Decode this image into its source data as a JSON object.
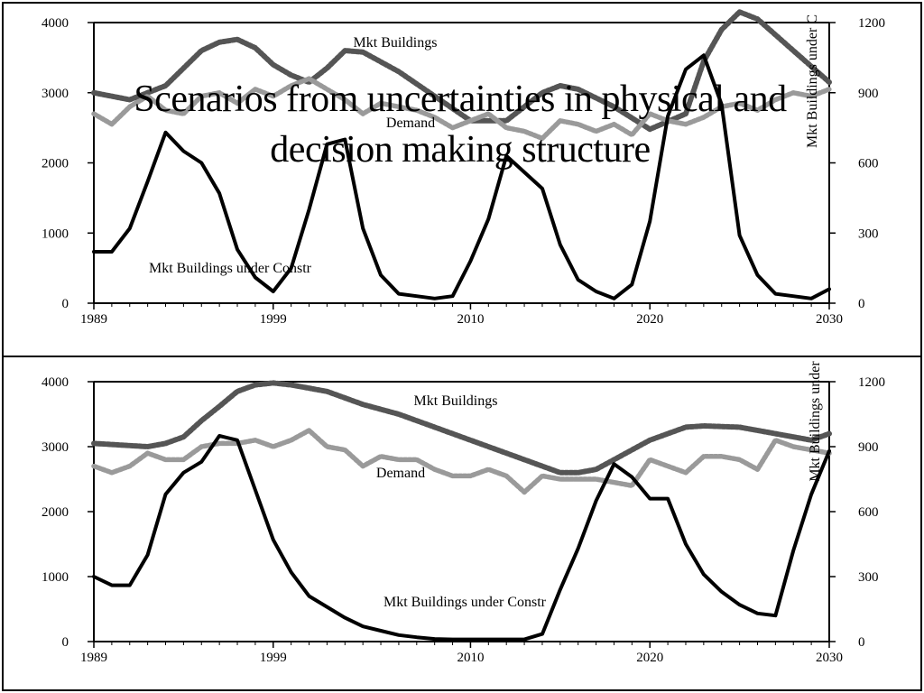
{
  "title": "Scenarios from uncertainties in physical and decision making structure",
  "title_lines": [
    "Scenarios from uncertainties in physical and",
    "decision making structure"
  ],
  "colors": {
    "buildings": "#555555",
    "demand": "#9a9a9a",
    "construction": "#000000"
  },
  "chart_data": [
    {
      "type": "line",
      "x_ticks": [
        "1989",
        "1999",
        "2010",
        "2020",
        "2030"
      ],
      "xlim": [
        1989,
        2030
      ],
      "ylim_left": [
        0,
        4000
      ],
      "y_ticks_left": [
        "0",
        "1000",
        "2000",
        "3000",
        "4000"
      ],
      "ylim_right": [
        0,
        1200
      ],
      "y_ticks_right": [
        "0",
        "300",
        "600",
        "900",
        "1200"
      ],
      "ylabel_right": "Mkt Buildings under C",
      "series": [
        {
          "name": "Mkt Buildings",
          "axis": "left",
          "x": [
            1989,
            1991,
            1993,
            1995,
            1996,
            1997,
            1998,
            1999,
            2000,
            2001,
            2002,
            2003,
            2004,
            2006,
            2008,
            2010,
            2012,
            2014,
            2015,
            2016,
            2018,
            2020,
            2022,
            2023,
            2024,
            2025,
            2026,
            2028,
            2030
          ],
          "y": [
            3000,
            2900,
            3100,
            3600,
            3720,
            3760,
            3640,
            3400,
            3250,
            3150,
            3350,
            3600,
            3580,
            3300,
            2950,
            2600,
            2600,
            3000,
            3100,
            3050,
            2800,
            2480,
            2700,
            3450,
            3900,
            4150,
            4050,
            3600,
            3150
          ]
        },
        {
          "name": "Demand",
          "axis": "left",
          "x": [
            1989,
            1990,
            1991,
            1992,
            1993,
            1994,
            1995,
            1996,
            1997,
            1998,
            1999,
            2000,
            2001,
            2002,
            2003,
            2004,
            2005,
            2006,
            2007,
            2008,
            2009,
            2010,
            2011,
            2012,
            2013,
            2014,
            2015,
            2016,
            2017,
            2018,
            2019,
            2020,
            2021,
            2022,
            2023,
            2024,
            2025,
            2026,
            2027,
            2028,
            2029,
            2030
          ],
          "y": [
            2700,
            2550,
            2800,
            2950,
            2750,
            2700,
            2950,
            3000,
            2850,
            3050,
            2950,
            3100,
            3200,
            3050,
            2900,
            2700,
            2850,
            2800,
            2750,
            2650,
            2500,
            2600,
            2700,
            2500,
            2450,
            2350,
            2600,
            2550,
            2450,
            2550,
            2400,
            2700,
            2600,
            2550,
            2650,
            2800,
            2850,
            2750,
            2900,
            3000,
            2950,
            3050
          ]
        },
        {
          "name": "Mkt Buildings under Constr",
          "axis": "right",
          "x": [
            1989,
            1990,
            1991,
            1992,
            1993,
            1994,
            1995,
            1996,
            1997,
            1998,
            1999,
            2000,
            2001,
            2002,
            2003,
            2004,
            2005,
            2006,
            2007,
            2008,
            2009,
            2010,
            2011,
            2012,
            2013,
            2014,
            2015,
            2016,
            2017,
            2018,
            2019,
            2020,
            2021,
            2022,
            2023,
            2024,
            2025,
            2026,
            2027,
            2028,
            2029,
            2030
          ],
          "y": [
            220,
            220,
            320,
            520,
            730,
            650,
            600,
            470,
            230,
            110,
            50,
            150,
            400,
            680,
            700,
            320,
            120,
            40,
            30,
            20,
            30,
            180,
            360,
            630,
            560,
            490,
            250,
            100,
            50,
            20,
            80,
            350,
            800,
            1000,
            1060,
            850,
            290,
            120,
            40,
            30,
            20,
            60
          ]
        }
      ]
    },
    {
      "type": "line",
      "x_ticks": [
        "1989",
        "1999",
        "2010",
        "2020",
        "2030"
      ],
      "xlim": [
        1989,
        2030
      ],
      "ylim_left": [
        0,
        4000
      ],
      "y_ticks_left": [
        "0",
        "1000",
        "2000",
        "3000",
        "4000"
      ],
      "ylim_right": [
        0,
        1200
      ],
      "y_ticks_right": [
        "0",
        "300",
        "600",
        "900",
        "1200"
      ],
      "ylabel_right": "Mkt Buildings under",
      "series": [
        {
          "name": "Mkt Buildings",
          "axis": "left",
          "x": [
            1989,
            1992,
            1993,
            1994,
            1995,
            1996,
            1997,
            1998,
            1999,
            2000,
            2002,
            2004,
            2006,
            2008,
            2010,
            2012,
            2014,
            2015,
            2016,
            2017,
            2018,
            2019,
            2020,
            2022,
            2023,
            2025,
            2027,
            2029,
            2030
          ],
          "y": [
            3050,
            3000,
            3050,
            3150,
            3400,
            3620,
            3850,
            3950,
            3980,
            3950,
            3850,
            3650,
            3500,
            3300,
            3100,
            2900,
            2700,
            2600,
            2600,
            2650,
            2800,
            2950,
            3100,
            3300,
            3320,
            3300,
            3200,
            3100,
            3200
          ]
        },
        {
          "name": "Demand",
          "axis": "left",
          "x": [
            1989,
            1990,
            1991,
            1992,
            1993,
            1994,
            1995,
            1996,
            1997,
            1998,
            1999,
            2000,
            2001,
            2002,
            2003,
            2004,
            2005,
            2006,
            2007,
            2008,
            2009,
            2010,
            2011,
            2012,
            2013,
            2014,
            2015,
            2016,
            2017,
            2018,
            2019,
            2020,
            2021,
            2022,
            2023,
            2024,
            2025,
            2026,
            2027,
            2028,
            2029,
            2030
          ],
          "y": [
            2700,
            2600,
            2700,
            2900,
            2800,
            2800,
            3000,
            3050,
            3050,
            3100,
            3000,
            3100,
            3250,
            3000,
            2950,
            2700,
            2850,
            2800,
            2800,
            2650,
            2550,
            2550,
            2650,
            2550,
            2300,
            2550,
            2500,
            2500,
            2500,
            2450,
            2400,
            2800,
            2700,
            2600,
            2850,
            2850,
            2800,
            2650,
            3100,
            3000,
            2950,
            2900
          ]
        },
        {
          "name": "Mkt Buildings under Constr",
          "axis": "right",
          "x": [
            1989,
            1990,
            1991,
            1992,
            1993,
            1994,
            1995,
            1996,
            1997,
            1998,
            1999,
            2000,
            2001,
            2002,
            2003,
            2004,
            2005,
            2006,
            2007,
            2008,
            2009,
            2010,
            2011,
            2012,
            2013,
            2014,
            2015,
            2016,
            2017,
            2018,
            2019,
            2020,
            2021,
            2022,
            2023,
            2024,
            2025,
            2026,
            2027,
            2028,
            2029,
            2030
          ],
          "y": [
            300,
            260,
            260,
            400,
            680,
            780,
            830,
            950,
            930,
            700,
            470,
            320,
            210,
            160,
            110,
            70,
            50,
            30,
            20,
            12,
            10,
            10,
            10,
            10,
            10,
            35,
            240,
            430,
            650,
            820,
            760,
            660,
            660,
            450,
            310,
            230,
            170,
            130,
            120,
            420,
            680,
            880
          ]
        }
      ]
    }
  ]
}
